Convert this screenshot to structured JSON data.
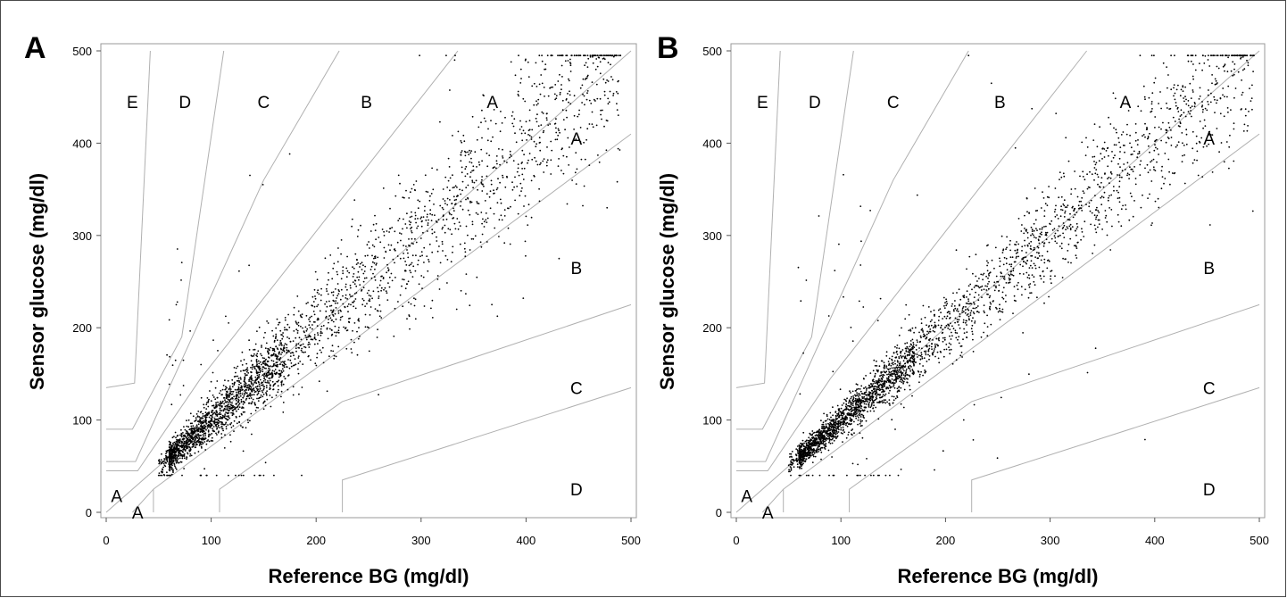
{
  "colors": {
    "points": "#000000",
    "zone_lines": "#b0b0b0",
    "frame": "#9a9a9a"
  },
  "chart_data": [
    {
      "panel": "A",
      "type": "scatter",
      "xlabel": "Reference BG (mg/dl)",
      "ylabel": "Sensor glucose (mg/dl)",
      "xlim": [
        0,
        500
      ],
      "ylim": [
        0,
        500
      ],
      "xticks": [
        "0",
        "100",
        "200",
        "300",
        "400",
        "500"
      ],
      "yticks": [
        "0",
        "100",
        "200",
        "300",
        "400",
        "500"
      ],
      "grid": false,
      "zone_labels": [
        {
          "text": "E",
          "x": 25,
          "y": 445
        },
        {
          "text": "D",
          "x": 75,
          "y": 445
        },
        {
          "text": "C",
          "x": 150,
          "y": 445
        },
        {
          "text": "B",
          "x": 248,
          "y": 445
        },
        {
          "text": "A",
          "x": 368,
          "y": 445
        },
        {
          "text": "A",
          "x": 448,
          "y": 405
        },
        {
          "text": "B",
          "x": 448,
          "y": 265
        },
        {
          "text": "C",
          "x": 448,
          "y": 135
        },
        {
          "text": "D",
          "x": 448,
          "y": 25
        },
        {
          "text": "A",
          "x": 10,
          "y": 18
        },
        {
          "text": "A",
          "x": 30,
          "y": 0
        }
      ],
      "point_cloud": {
        "approx_count": 9000,
        "trend": "Sensor ≈ Reference",
        "ref_range": [
          40,
          490
        ],
        "sensor_range": [
          40,
          495
        ],
        "spread_sd_fraction": 0.12,
        "outlier_fraction": 0.05
      }
    },
    {
      "panel": "B",
      "type": "scatter",
      "xlabel": "Reference BG (mg/dl)",
      "ylabel": "Sensor glucose (mg/dl)",
      "xlim": [
        0,
        500
      ],
      "ylim": [
        0,
        500
      ],
      "xticks": [
        "0",
        "100",
        "200",
        "300",
        "400",
        "500"
      ],
      "yticks": [
        "0",
        "100",
        "200",
        "300",
        "400",
        "500"
      ],
      "grid": false,
      "zone_labels": [
        {
          "text": "E",
          "x": 25,
          "y": 445
        },
        {
          "text": "D",
          "x": 75,
          "y": 445
        },
        {
          "text": "C",
          "x": 150,
          "y": 445
        },
        {
          "text": "B",
          "x": 252,
          "y": 445
        },
        {
          "text": "A",
          "x": 372,
          "y": 445
        },
        {
          "text": "A",
          "x": 452,
          "y": 405
        },
        {
          "text": "B",
          "x": 452,
          "y": 265
        },
        {
          "text": "C",
          "x": 452,
          "y": 135
        },
        {
          "text": "D",
          "x": 452,
          "y": 25
        },
        {
          "text": "A",
          "x": 10,
          "y": 18
        },
        {
          "text": "A",
          "x": 30,
          "y": 0
        }
      ],
      "point_cloud": {
        "approx_count": 9000,
        "trend": "Sensor ≈ Reference",
        "ref_range": [
          40,
          495
        ],
        "sensor_range": [
          40,
          495
        ],
        "spread_sd_fraction": 0.09,
        "outlier_fraction": 0.04
      }
    }
  ]
}
